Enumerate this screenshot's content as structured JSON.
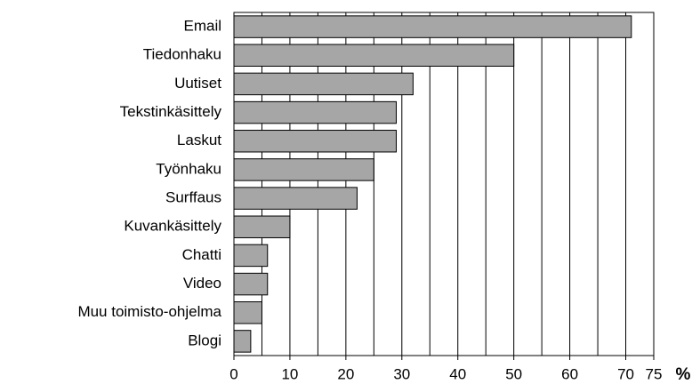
{
  "chart_data": {
    "type": "bar",
    "orientation": "horizontal",
    "categories": [
      "Email",
      "Tiedonhaku",
      "Uutiset",
      "Tekstinkäsittely",
      "Laskut",
      "Työnhaku",
      "Surffaus",
      "Kuvankäsittely",
      "Chatti",
      "Video",
      "Muu toimisto-ohjelma",
      "Blogi"
    ],
    "values": [
      71,
      50,
      32,
      29,
      29,
      25,
      22,
      10,
      6,
      6,
      5,
      3
    ],
    "color": "#a6a6a6",
    "x_label": "%",
    "xlim": [
      0,
      75
    ],
    "xticks": [
      0,
      10,
      20,
      30,
      40,
      50,
      60,
      70,
      75
    ],
    "xminorticks": [
      5,
      15,
      25,
      35,
      45,
      55,
      65
    ],
    "grid": true
  }
}
